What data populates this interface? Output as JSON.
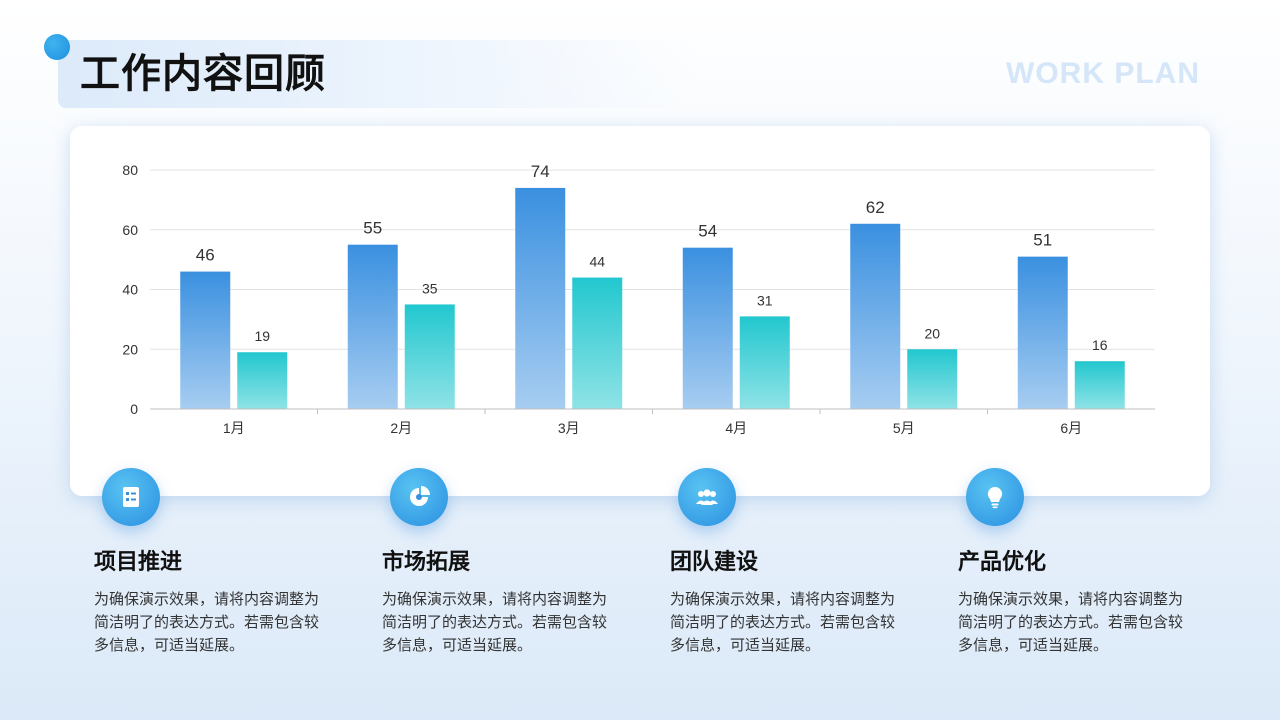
{
  "header": {
    "title": "工作内容回顾",
    "watermark": "WORK PLAN"
  },
  "chart_data": {
    "type": "bar",
    "categories": [
      "1月",
      "2月",
      "3月",
      "4月",
      "5月",
      "6月"
    ],
    "series": [
      {
        "values": [
          46,
          55,
          74,
          54,
          62,
          51
        ],
        "color": "#3a90e0"
      },
      {
        "values": [
          19,
          35,
          44,
          31,
          20,
          16
        ],
        "color": "#22c7cf"
      }
    ],
    "ylim": [
      0,
      80
    ],
    "yticks": [
      0,
      20,
      40,
      60,
      80
    ],
    "grid": true
  },
  "features": [
    {
      "icon": "document-icon",
      "title": "项目推进",
      "desc": "为确保演示效果，请将内容调整为简洁明了的表达方式。若需包含较多信息，可适当延展。"
    },
    {
      "icon": "pie-chart-icon",
      "title": "市场拓展",
      "desc": "为确保演示效果，请将内容调整为简洁明了的表达方式。若需包含较多信息，可适当延展。"
    },
    {
      "icon": "team-icon",
      "title": "团队建设",
      "desc": "为确保演示效果，请将内容调整为简洁明了的表达方式。若需包含较多信息，可适当延展。"
    },
    {
      "icon": "lightbulb-icon",
      "title": "产品优化",
      "desc": "为确保演示效果，请将内容调整为简洁明了的表达方式。若需包含较多信息，可适当延展。"
    }
  ]
}
